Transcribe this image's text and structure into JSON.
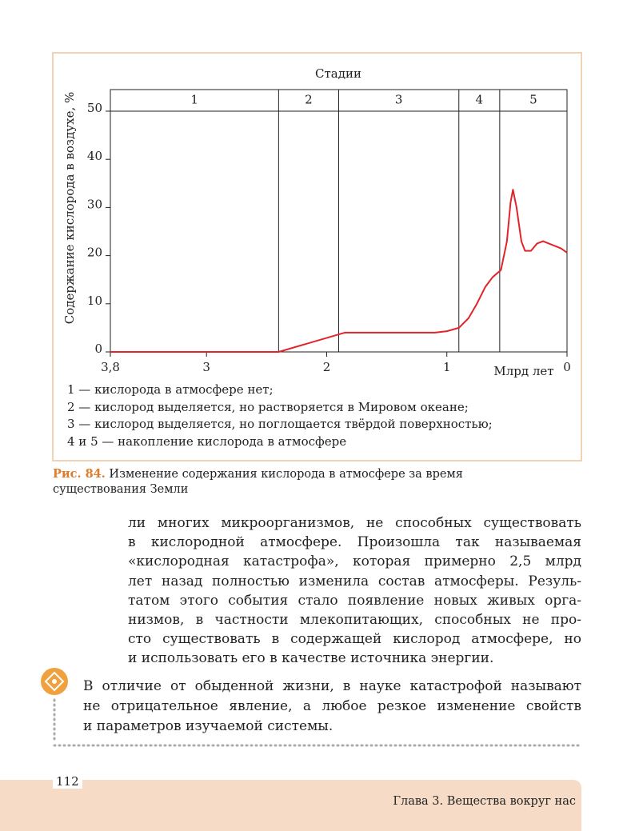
{
  "chart_data": {
    "type": "line",
    "stages_title": "Стадии",
    "stage_labels": [
      "1",
      "2",
      "3",
      "4",
      "5"
    ],
    "stage_bounds": [
      2.4,
      1.9,
      0.9,
      0.56
    ],
    "y_label": "Содержание кислорода в воздухе, %",
    "x_label": "Млрд лет",
    "xlim": [
      3.8,
      0
    ],
    "xticks": [
      {
        "value": 3.8,
        "label": "3,8"
      },
      3,
      2,
      1,
      0
    ],
    "ylim": [
      0,
      50
    ],
    "yticks": [
      0,
      10,
      20,
      30,
      40,
      50
    ],
    "color": "#e3232a",
    "x": [
      3.8,
      2.4,
      1.85,
      1.1,
      1.0,
      0.9,
      0.82,
      0.75,
      0.68,
      0.62,
      0.55,
      0.5,
      0.47,
      0.45,
      0.42,
      0.38,
      0.35,
      0.3,
      0.25,
      0.2,
      0.15,
      0.1,
      0.05,
      0.0
    ],
    "values": [
      0,
      0,
      4,
      4,
      4.3,
      5,
      7,
      10,
      13.5,
      15.5,
      17,
      23,
      31,
      33.7,
      30,
      23,
      21,
      21,
      22.5,
      23,
      22.5,
      22,
      21.5,
      20.6
    ],
    "notes": [
      "1 — кислорода в атмосфере нет;",
      "2 — кислород выделяется, но растворяется в Мировом океане;",
      "3 — кислород выделяется, но поглощается твёрдой поверхностью;",
      "4 и 5 — накопление кислорода в атмосфере"
    ]
  },
  "caption": {
    "label": "Рис. 84.",
    "lines": [
      "Изменение содержания кислорода в атмосфере за время",
      "существования Земли"
    ]
  },
  "body": [
    "ли многих микроорганизмов, не способных существовать",
    "в кислородной атмосфере. Произошла так называемая",
    "«кислородная катастрофа», которая примерно 2,5 млрд",
    "лет назад полностью изменила состав атмосферы. Резуль-",
    "татом этого события стало появление новых живых орга-",
    "низмов, в частности млекопитающих, способных не про-",
    "сто существовать в содержащей кислород атмосфере, но",
    "и использовать его в качестве источника энергии."
  ],
  "note": [
    "В отличие от обыденной жизни, в науке катастрофой называют",
    "не отрицательное явление, а любое резкое изменение свойств",
    "и параметров изучаемой системы."
  ],
  "footer": {
    "page": "112",
    "chapter": "Глава 3. Вещества вокруг нас"
  }
}
